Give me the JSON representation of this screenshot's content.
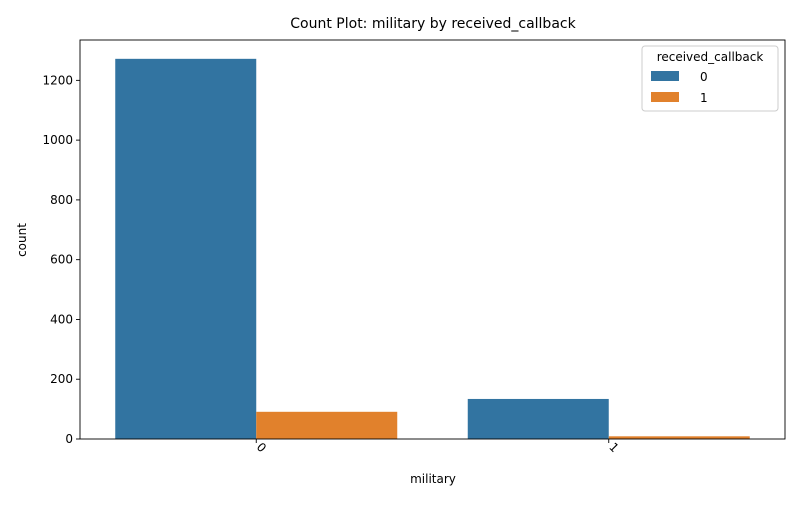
{
  "chart_data": {
    "type": "bar",
    "title": "Count Plot: military by received_callback",
    "xlabel": "military",
    "ylabel": "count",
    "categories": [
      "0",
      "1"
    ],
    "series": [
      {
        "name": "0",
        "values": [
          1272,
          134
        ],
        "color": "#3274a1"
      },
      {
        "name": "1",
        "values": [
          91,
          9
        ],
        "color": "#e1812c"
      }
    ],
    "ylim": [
      0,
      1335
    ],
    "yticks": [
      0,
      200,
      400,
      600,
      800,
      1000,
      1200
    ],
    "ytick_labels": [
      "0",
      "200",
      "400",
      "600",
      "800",
      "1000",
      "1200"
    ],
    "xtick_rotation": 45,
    "grid": false,
    "legend": {
      "title": "received_callback",
      "position": "top-right"
    }
  }
}
